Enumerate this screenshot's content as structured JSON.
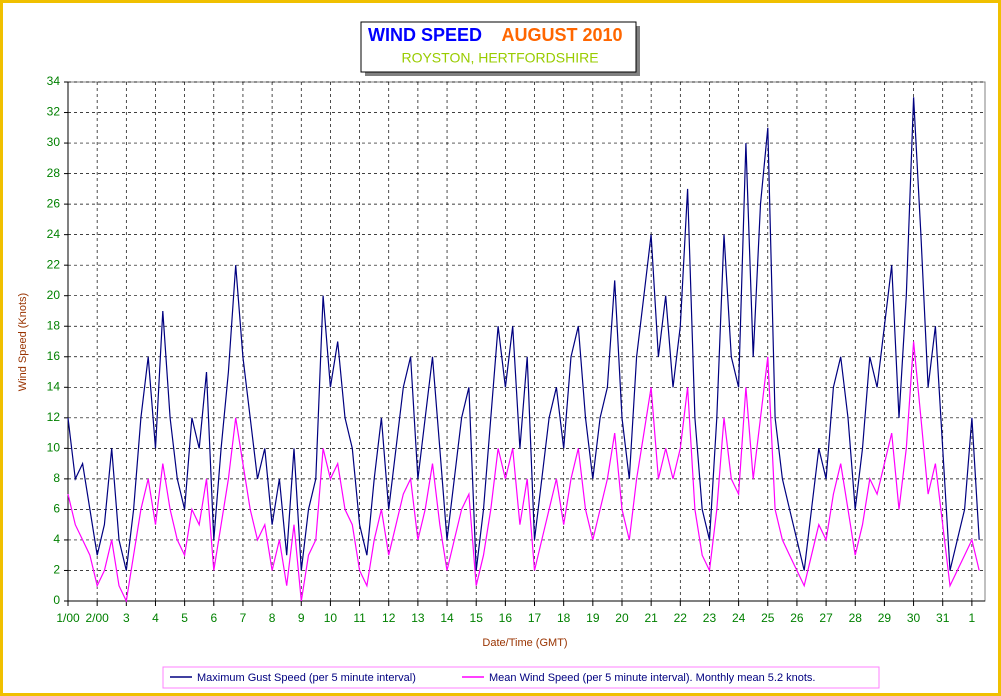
{
  "chart_data": {
    "type": "line",
    "title": "WIND SPEED",
    "title_month": "AUGUST 2010",
    "subtitle": "ROYSTON, HERTFORDSHIRE",
    "y_label": "Wind Speed (Knots)",
    "x_label": "Date/Time (GMT)",
    "xlim": [
      1,
      32.45
    ],
    "ylim": [
      0,
      34
    ],
    "yticks": [
      0,
      2,
      4,
      6,
      8,
      10,
      12,
      14,
      16,
      18,
      20,
      22,
      24,
      26,
      28,
      30,
      32,
      34
    ],
    "xticks": [
      {
        "value": 1,
        "label": "1/00"
      },
      {
        "value": 2,
        "label": "2/00"
      },
      3,
      4,
      5,
      6,
      7,
      8,
      9,
      10,
      11,
      12,
      13,
      14,
      15,
      16,
      17,
      18,
      19,
      20,
      21,
      22,
      23,
      24,
      25,
      26,
      27,
      28,
      29,
      30,
      31,
      {
        "value": 32,
        "label": "1"
      }
    ],
    "grid": true,
    "x": [
      1,
      1.25,
      1.5,
      1.75,
      2,
      2.25,
      2.5,
      2.75,
      3,
      3.25,
      3.5,
      3.75,
      4,
      4.25,
      4.5,
      4.75,
      5,
      5.25,
      5.5,
      5.75,
      6,
      6.25,
      6.5,
      6.75,
      7,
      7.25,
      7.5,
      7.75,
      8,
      8.25,
      8.5,
      8.75,
      9,
      9.25,
      9.5,
      9.75,
      10,
      10.25,
      10.5,
      10.75,
      11,
      11.25,
      11.5,
      11.75,
      12,
      12.25,
      12.5,
      12.75,
      13,
      13.25,
      13.5,
      13.75,
      14,
      14.25,
      14.5,
      14.75,
      15,
      15.25,
      15.5,
      15.75,
      16,
      16.25,
      16.5,
      16.75,
      17,
      17.25,
      17.5,
      17.75,
      18,
      18.25,
      18.5,
      18.75,
      19,
      19.25,
      19.5,
      19.75,
      20,
      20.25,
      20.5,
      20.75,
      21,
      21.25,
      21.5,
      21.75,
      22,
      22.25,
      22.5,
      22.75,
      23,
      23.25,
      23.5,
      23.75,
      24,
      24.25,
      24.5,
      24.75,
      25,
      25.25,
      25.5,
      25.75,
      26,
      26.25,
      26.5,
      26.75,
      27,
      27.25,
      27.5,
      27.75,
      28,
      28.25,
      28.5,
      28.75,
      29,
      29.25,
      29.5,
      29.75,
      30,
      30.25,
      30.5,
      30.75,
      31,
      31.25,
      31.5,
      31.75,
      32,
      32.25
    ],
    "series": [
      {
        "name": "Maximum Gust Speed (per 5 minute interval)",
        "color": "#000080",
        "values": [
          12,
          8,
          9,
          6,
          3,
          5,
          10,
          4,
          2,
          6,
          12,
          16,
          10,
          19,
          12,
          8,
          6,
          12,
          10,
          15,
          4,
          10,
          15,
          22,
          16,
          12,
          8,
          10,
          5,
          8,
          3,
          10,
          2,
          6,
          8,
          20,
          14,
          17,
          12,
          10,
          5,
          3,
          8,
          12,
          6,
          10,
          14,
          16,
          8,
          12,
          16,
          10,
          4,
          8,
          12,
          14,
          2,
          6,
          12,
          18,
          14,
          18,
          10,
          16,
          4,
          8,
          12,
          14,
          10,
          16,
          18,
          12,
          8,
          12,
          14,
          21,
          12,
          8,
          16,
          20,
          24,
          16,
          20,
          14,
          18,
          27,
          12,
          6,
          4,
          12,
          24,
          16,
          14,
          30,
          16,
          26,
          31,
          12,
          8,
          6,
          4,
          2,
          6,
          10,
          8,
          14,
          16,
          12,
          6,
          10,
          16,
          14,
          18,
          22,
          12,
          20,
          33,
          24,
          14,
          18,
          10,
          2,
          4,
          6,
          12,
          4
        ]
      },
      {
        "name": "Mean Wind Speed (per 5 minute interval). Monthly mean 5.2 knots.",
        "color": "#ff00ff",
        "values": [
          7,
          5,
          4,
          3,
          1,
          2,
          4,
          1,
          0,
          3,
          6,
          8,
          5,
          9,
          6,
          4,
          3,
          6,
          5,
          8,
          2,
          5,
          8,
          12,
          9,
          6,
          4,
          5,
          2,
          4,
          1,
          5,
          0,
          3,
          4,
          10,
          8,
          9,
          6,
          5,
          2,
          1,
          4,
          6,
          3,
          5,
          7,
          8,
          4,
          6,
          9,
          5,
          2,
          4,
          6,
          7,
          1,
          3,
          6,
          10,
          8,
          10,
          5,
          8,
          2,
          4,
          6,
          8,
          5,
          8,
          10,
          6,
          4,
          6,
          8,
          11,
          6,
          4,
          8,
          11,
          14,
          8,
          10,
          8,
          10,
          14,
          6,
          3,
          2,
          6,
          12,
          8,
          7,
          14,
          8,
          12,
          16,
          6,
          4,
          3,
          2,
          1,
          3,
          5,
          4,
          7,
          9,
          6,
          3,
          5,
          8,
          7,
          9,
          11,
          6,
          10,
          17,
          12,
          7,
          9,
          5,
          1,
          2,
          3,
          4,
          2
        ]
      }
    ]
  }
}
